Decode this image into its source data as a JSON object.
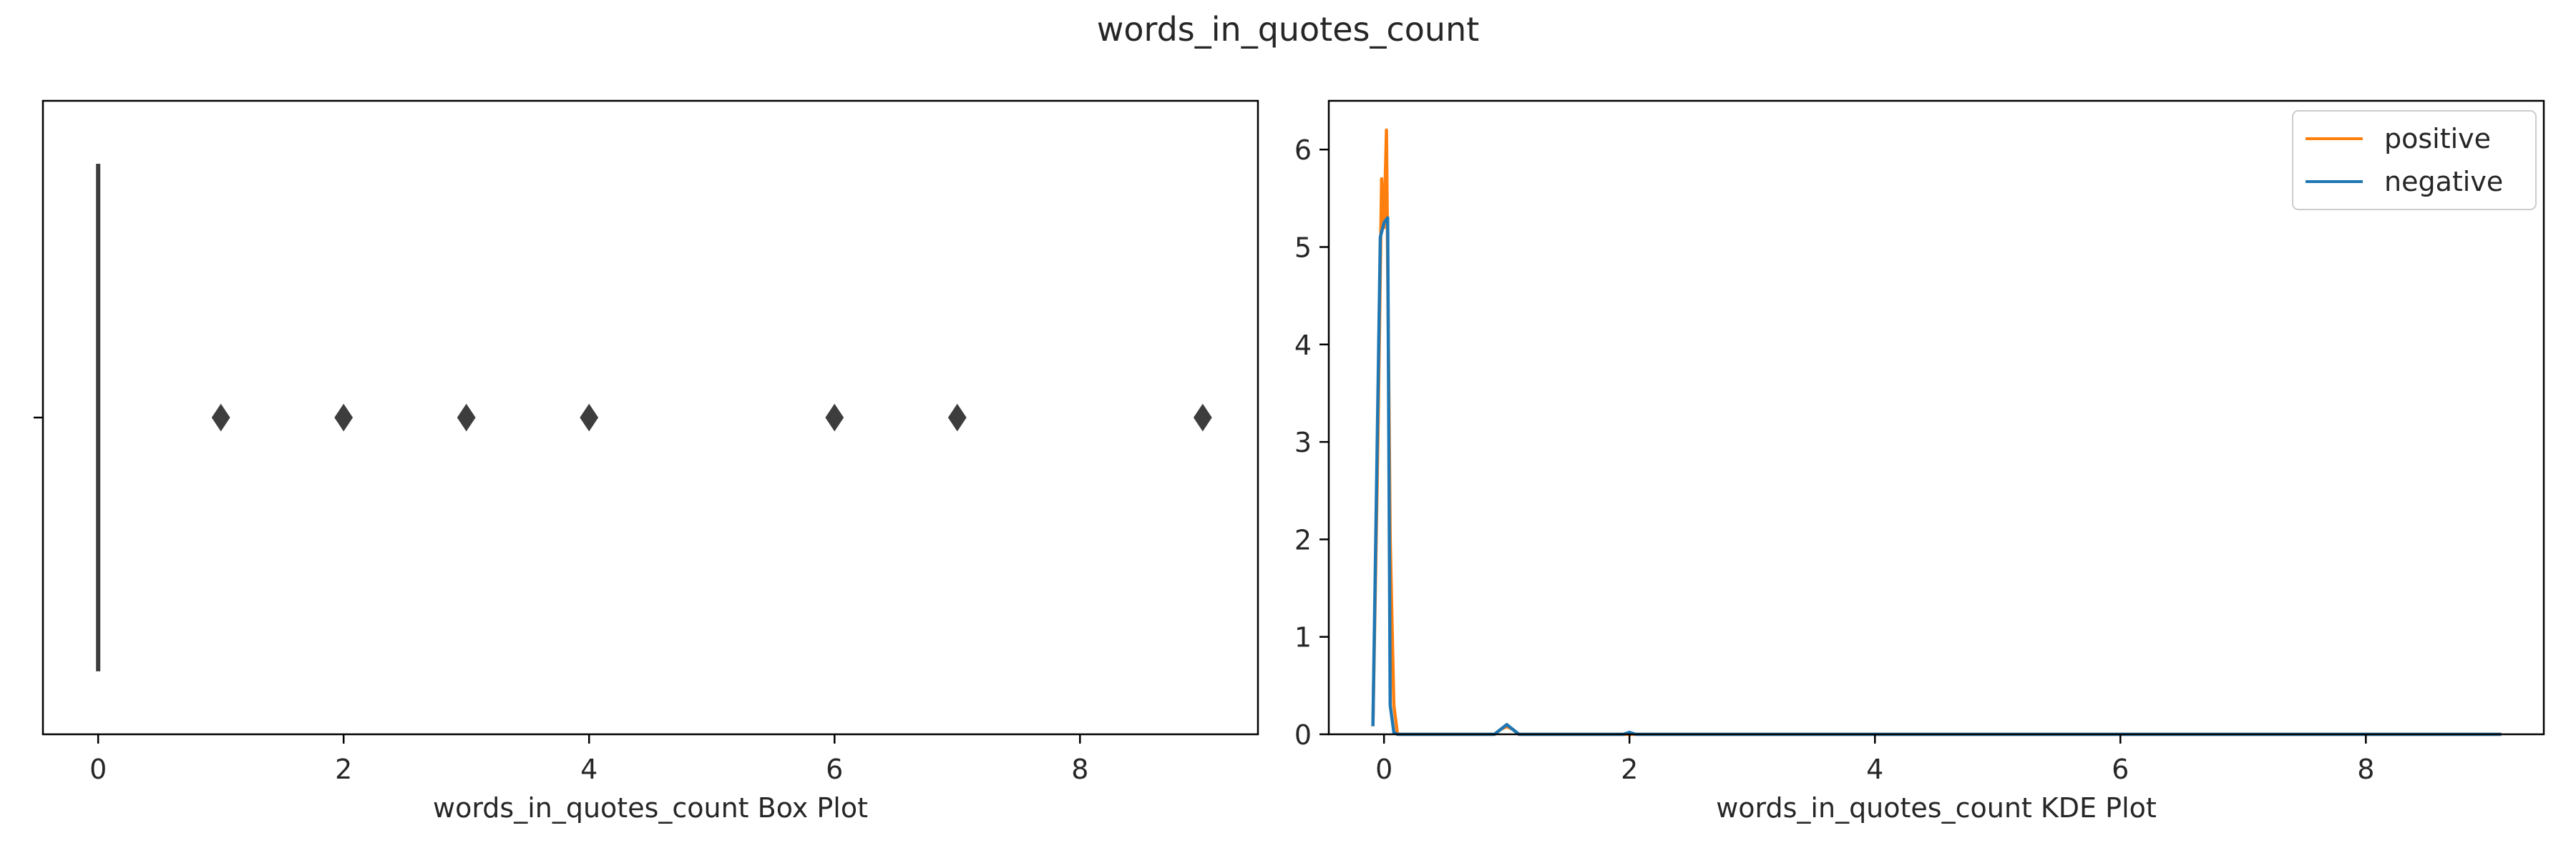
{
  "figure": {
    "suptitle": "words_in_quotes_count"
  },
  "chart_data": [
    {
      "type": "box",
      "xlabel": "words_in_quotes_count Box Plot",
      "ylabel": "",
      "xlim": [
        -0.45,
        9.45
      ],
      "xticks": [
        0,
        2,
        4,
        6,
        8
      ],
      "box": {
        "min": 0,
        "q1": 0,
        "median": 0,
        "q3": 0,
        "max": 0
      },
      "outliers": [
        1,
        2,
        3,
        4,
        6,
        7,
        9
      ],
      "colors": {
        "box": "#3d3d3d",
        "outlier": "#3d3d3d"
      }
    },
    {
      "type": "line",
      "xlabel": "words_in_quotes_count KDE Plot",
      "ylabel": "",
      "xlim": [
        -0.45,
        9.45
      ],
      "ylim": [
        0,
        6.5
      ],
      "xticks": [
        0,
        2,
        4,
        6,
        8
      ],
      "yticks": [
        0,
        1,
        2,
        3,
        4,
        5,
        6
      ],
      "legend_position": "top-right",
      "series": [
        {
          "name": "positive",
          "color": "#ff7f0e",
          "x": [
            -0.09,
            -0.05,
            -0.02,
            0.0,
            0.02,
            0.05,
            0.08,
            0.11,
            0.3,
            0.6,
            0.9,
            0.95,
            1.0,
            1.05,
            1.1,
            1.5,
            2.0,
            3.0,
            4.0,
            5.0,
            6.0,
            7.0,
            8.0,
            9.09
          ],
          "y": [
            0.1,
            3.0,
            5.7,
            5.2,
            6.2,
            2.0,
            0.3,
            0.0,
            0.0,
            0.0,
            0.0,
            0.05,
            0.08,
            0.05,
            0.0,
            0.0,
            0.0,
            0.0,
            0.0,
            0.0,
            0.0,
            0.0,
            0.0,
            0.0
          ]
        },
        {
          "name": "negative",
          "color": "#1f77b4",
          "x": [
            -0.09,
            -0.03,
            0.0,
            0.03,
            0.05,
            0.08,
            0.11,
            0.3,
            0.6,
            0.9,
            0.95,
            1.0,
            1.05,
            1.1,
            1.5,
            1.95,
            2.0,
            2.05,
            3.0,
            4.0,
            5.0,
            6.0,
            7.0,
            8.0,
            9.09
          ],
          "y": [
            0.1,
            5.1,
            5.25,
            5.3,
            0.3,
            0.02,
            0.0,
            0.0,
            0.0,
            0.0,
            0.05,
            0.1,
            0.05,
            0.0,
            0.0,
            0.0,
            0.02,
            0.0,
            0.0,
            0.0,
            0.0,
            0.0,
            0.0,
            0.0,
            0.0
          ]
        }
      ]
    }
  ]
}
